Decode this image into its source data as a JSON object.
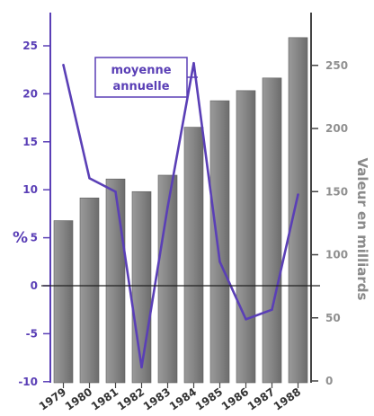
{
  "chart_data": {
    "type": "bar",
    "categories": [
      "1979",
      "1980",
      "1981",
      "1982",
      "1983",
      "1984",
      "1985",
      "1986",
      "1987",
      "1988"
    ],
    "series": [
      {
        "type": "bar",
        "axis": "right",
        "values": [
          127,
          145,
          160,
          150,
          163,
          201,
          222,
          230,
          240,
          272
        ]
      },
      {
        "type": "line",
        "axis": "left",
        "values": [
          23,
          11.2,
          9.8,
          -8.5,
          8.2,
          23.2,
          2.5,
          -3.5,
          -2.5,
          9.5
        ]
      }
    ],
    "ylabel": "%",
    "y2label": "Valeur en milliards",
    "ylim": [
      -10,
      28
    ],
    "y2lim": [
      0,
      270
    ],
    "yticks": [
      25,
      20,
      15,
      10,
      5,
      0,
      -5,
      -10
    ],
    "y2ticks": [
      250,
      200,
      150,
      100,
      50,
      0
    ],
    "annotation": {
      "line1": "moyenne",
      "line2": "annuelle"
    },
    "colors": {
      "bar": "#888888",
      "line": "#5a3fb6",
      "left_axis": "#5a3fb6",
      "right_axis": "#909090"
    },
    "grid": false
  }
}
